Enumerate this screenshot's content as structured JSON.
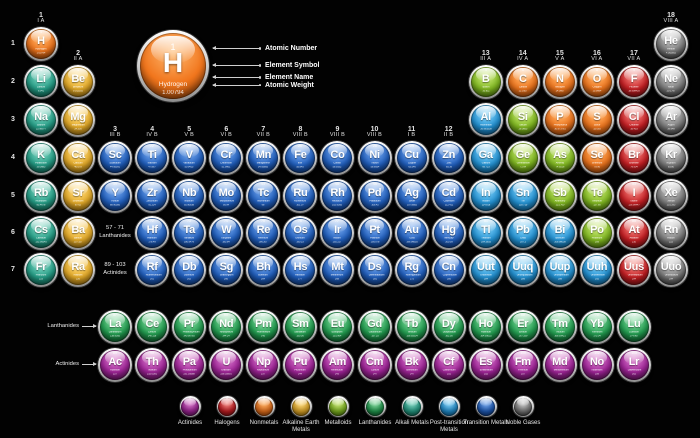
{
  "hero": {
    "number": "1",
    "symbol": "H",
    "name": "Hydrogen",
    "weight": "1.00794"
  },
  "callouts": {
    "atomic_number": "Atomic Number",
    "element_symbol": "Element Symbol",
    "element_name": "Element Name",
    "atomic_weight": "Atomic Weight"
  },
  "side_labels": {
    "lanthanides": "Lanthanides",
    "actinides": "Actinides"
  },
  "inner_labels": {
    "lan_range": "57 - 71",
    "lan_word": "Lanthanides",
    "act_range": "89 - 103",
    "act_word": "Actinides"
  },
  "periods": [
    "1",
    "2",
    "3",
    "4",
    "5",
    "6",
    "7"
  ],
  "groups": [
    {
      "col": 1,
      "num": "1",
      "roman": "I A",
      "lvl": "t"
    },
    {
      "col": 2,
      "num": "2",
      "roman": "II A",
      "lvl": "m"
    },
    {
      "col": 3,
      "num": "3",
      "roman": "III B",
      "lvl": "b"
    },
    {
      "col": 4,
      "num": "4",
      "roman": "IV B",
      "lvl": "b"
    },
    {
      "col": 5,
      "num": "5",
      "roman": "V B",
      "lvl": "b"
    },
    {
      "col": 6,
      "num": "6",
      "roman": "VI B",
      "lvl": "b"
    },
    {
      "col": 7,
      "num": "7",
      "roman": "VII B",
      "lvl": "b"
    },
    {
      "col": 8,
      "num": "8",
      "roman": "VIII B",
      "lvl": "b"
    },
    {
      "col": 9,
      "num": "9",
      "roman": "VIII B",
      "lvl": "b"
    },
    {
      "col": 10,
      "num": "10",
      "roman": "VIII B",
      "lvl": "b"
    },
    {
      "col": 11,
      "num": "11",
      "roman": "I B",
      "lvl": "b"
    },
    {
      "col": 12,
      "num": "12",
      "roman": "II B",
      "lvl": "b"
    },
    {
      "col": 13,
      "num": "13",
      "roman": "III A",
      "lvl": "m"
    },
    {
      "col": 14,
      "num": "14",
      "roman": "IV A",
      "lvl": "m"
    },
    {
      "col": 15,
      "num": "15",
      "roman": "V A",
      "lvl": "m"
    },
    {
      "col": 16,
      "num": "16",
      "roman": "VI A",
      "lvl": "m"
    },
    {
      "col": 17,
      "num": "17",
      "roman": "VII A",
      "lvl": "m"
    },
    {
      "col": 18,
      "num": "18",
      "roman": "VIII A",
      "lvl": "t"
    }
  ],
  "colors": {
    "actinide": {
      "light": "#e08ad2",
      "base": "#a3259b",
      "dark": "#4e0d49"
    },
    "halogen": {
      "light": "#f79a92",
      "base": "#cb1f24",
      "dark": "#5f0709"
    },
    "nonmetal": {
      "light": "#ffbb72",
      "base": "#f1761d",
      "dark": "#7c3403"
    },
    "alkaline": {
      "light": "#ffe18e",
      "base": "#eaaf2a",
      "dark": "#7b5605"
    },
    "metalloid": {
      "light": "#d3ec86",
      "base": "#84bd22",
      "dark": "#3a5c05"
    },
    "lanthanide": {
      "light": "#96e2ad",
      "base": "#23a152",
      "dark": "#063f1d"
    },
    "alkali": {
      "light": "#8fdcc9",
      "base": "#26a28a",
      "dark": "#064a3b"
    },
    "post": {
      "light": "#93d9f9",
      "base": "#2496d9",
      "dark": "#064a75"
    },
    "transition": {
      "light": "#86b4f2",
      "base": "#2161c2",
      "dark": "#06275f"
    },
    "noble": {
      "light": "#d4d4d4",
      "base": "#7e7e7e",
      "dark": "#1f1f1f"
    }
  },
  "legend": [
    {
      "label": "Actinides",
      "cat": "actinide"
    },
    {
      "label": "Halogens",
      "cat": "halogen"
    },
    {
      "label": "Nonmetals",
      "cat": "nonmetal"
    },
    {
      "label": "Alkaline Earth Metals",
      "cat": "alkaline"
    },
    {
      "label": "Metalloids",
      "cat": "metalloid"
    },
    {
      "label": "Lanthanides",
      "cat": "lanthanide"
    },
    {
      "label": "Alkali Metals",
      "cat": "alkali"
    },
    {
      "label": "Post-transition Metals",
      "cat": "post"
    },
    {
      "label": "Transition Metals",
      "cat": "transition"
    },
    {
      "label": "Noble Gases",
      "cat": "noble"
    }
  ],
  "elements": [
    [
      1,
      "H",
      "Hydrogen",
      "1.00794",
      "nonmetal",
      1,
      "1"
    ],
    [
      2,
      "He",
      "Helium",
      "4.002602",
      "noble",
      18,
      "1"
    ],
    [
      3,
      "Li",
      "Lithium",
      "6.941",
      "alkali",
      1,
      "2"
    ],
    [
      4,
      "Be",
      "Beryllium",
      "9.012182",
      "alkaline",
      2,
      "2"
    ],
    [
      5,
      "B",
      "Boron",
      "10.811",
      "metalloid",
      13,
      "2"
    ],
    [
      6,
      "C",
      "Carbon",
      "12.0107",
      "nonmetal",
      14,
      "2"
    ],
    [
      7,
      "N",
      "Nitrogen",
      "14.0067",
      "nonmetal",
      15,
      "2"
    ],
    [
      8,
      "O",
      "Oxygen",
      "15.9994",
      "nonmetal",
      16,
      "2"
    ],
    [
      9,
      "F",
      "Fluorine",
      "18.998403",
      "halogen",
      17,
      "2"
    ],
    [
      10,
      "Ne",
      "Neon",
      "20.1797",
      "noble",
      18,
      "2"
    ],
    [
      11,
      "Na",
      "Sodium",
      "22.98977",
      "alkali",
      1,
      "3"
    ],
    [
      12,
      "Mg",
      "Magnesium",
      "24.305",
      "alkaline",
      2,
      "3"
    ],
    [
      13,
      "Al",
      "Aluminium",
      "26.981538",
      "post",
      13,
      "3"
    ],
    [
      14,
      "Si",
      "Silicon",
      "28.0855",
      "metalloid",
      14,
      "3"
    ],
    [
      15,
      "P",
      "Phosphorus",
      "30.973761",
      "nonmetal",
      15,
      "3"
    ],
    [
      16,
      "S",
      "Sulfur",
      "32.065",
      "nonmetal",
      16,
      "3"
    ],
    [
      17,
      "Cl",
      "Chlorine",
      "35.453",
      "halogen",
      17,
      "3"
    ],
    [
      18,
      "Ar",
      "Argon",
      "39.948",
      "noble",
      18,
      "3"
    ],
    [
      19,
      "K",
      "Potassium",
      "39.0983",
      "alkali",
      1,
      "4"
    ],
    [
      20,
      "Ca",
      "Calcium",
      "40.078",
      "alkaline",
      2,
      "4"
    ],
    [
      21,
      "Sc",
      "Scandium",
      "44.95591",
      "transition",
      3,
      "4"
    ],
    [
      22,
      "Ti",
      "Titanium",
      "47.867",
      "transition",
      4,
      "4"
    ],
    [
      23,
      "V",
      "Vanadium",
      "50.9415",
      "transition",
      5,
      "4"
    ],
    [
      24,
      "Cr",
      "Chromium",
      "51.9961",
      "transition",
      6,
      "4"
    ],
    [
      25,
      "Mn",
      "Manganese",
      "54.93805",
      "transition",
      7,
      "4"
    ],
    [
      26,
      "Fe",
      "Iron",
      "55.845",
      "transition",
      8,
      "4"
    ],
    [
      27,
      "Co",
      "Cobalt",
      "58.9332",
      "transition",
      9,
      "4"
    ],
    [
      28,
      "Ni",
      "Nickel",
      "58.6934",
      "transition",
      10,
      "4"
    ],
    [
      29,
      "Cu",
      "Copper",
      "63.546",
      "transition",
      11,
      "4"
    ],
    [
      30,
      "Zn",
      "Zinc",
      "65.39",
      "transition",
      12,
      "4"
    ],
    [
      31,
      "Ga",
      "Gallium",
      "69.723",
      "post",
      13,
      "4"
    ],
    [
      32,
      "Ge",
      "Germanium",
      "72.64",
      "metalloid",
      14,
      "4"
    ],
    [
      33,
      "As",
      "Arsenic",
      "74.9216",
      "metalloid",
      15,
      "4"
    ],
    [
      34,
      "Se",
      "Selenium",
      "78.96",
      "nonmetal",
      16,
      "4"
    ],
    [
      35,
      "Br",
      "Bromine",
      "79.904",
      "halogen",
      17,
      "4"
    ],
    [
      36,
      "Kr",
      "Krypton",
      "83.80",
      "noble",
      18,
      "4"
    ],
    [
      37,
      "Rb",
      "Rubidium",
      "85.4678",
      "alkali",
      1,
      "5"
    ],
    [
      38,
      "Sr",
      "Strontium",
      "87.62",
      "alkaline",
      2,
      "5"
    ],
    [
      39,
      "Y",
      "Yttrium",
      "88.90585",
      "transition",
      3,
      "5"
    ],
    [
      40,
      "Zr",
      "Zirconium",
      "91.224",
      "transition",
      4,
      "5"
    ],
    [
      41,
      "Nb",
      "Niobium",
      "92.90638",
      "transition",
      5,
      "5"
    ],
    [
      42,
      "Mo",
      "Molybdenum",
      "95.94",
      "transition",
      6,
      "5"
    ],
    [
      43,
      "Tc",
      "Technetium",
      "98",
      "transition",
      7,
      "5"
    ],
    [
      44,
      "Ru",
      "Ruthenium",
      "101.07",
      "transition",
      8,
      "5"
    ],
    [
      45,
      "Rh",
      "Rhodium",
      "102.9055",
      "transition",
      9,
      "5"
    ],
    [
      46,
      "Pd",
      "Palladium",
      "106.42",
      "transition",
      10,
      "5"
    ],
    [
      47,
      "Ag",
      "Silver",
      "107.8682",
      "transition",
      11,
      "5"
    ],
    [
      48,
      "Cd",
      "Cadmium",
      "112.411",
      "transition",
      12,
      "5"
    ],
    [
      49,
      "In",
      "Indium",
      "114.818",
      "post",
      13,
      "5"
    ],
    [
      50,
      "Sn",
      "Tin",
      "118.710",
      "post",
      14,
      "5"
    ],
    [
      51,
      "Sb",
      "Antimony",
      "121.760",
      "metalloid",
      15,
      "5"
    ],
    [
      52,
      "Te",
      "Tellurium",
      "127.60",
      "metalloid",
      16,
      "5"
    ],
    [
      53,
      "I",
      "Iodine",
      "126.90447",
      "halogen",
      17,
      "5"
    ],
    [
      54,
      "Xe",
      "Xenon",
      "131.293",
      "noble",
      18,
      "5"
    ],
    [
      55,
      "Cs",
      "Caesium",
      "132.90545",
      "alkali",
      1,
      "6"
    ],
    [
      56,
      "Ba",
      "Barium",
      "137.327",
      "alkaline",
      2,
      "6"
    ],
    [
      72,
      "Hf",
      "Hafnium",
      "178.49",
      "transition",
      4,
      "6"
    ],
    [
      73,
      "Ta",
      "Tantalum",
      "180.9479",
      "transition",
      5,
      "6"
    ],
    [
      74,
      "W",
      "Tungsten",
      "183.84",
      "transition",
      6,
      "6"
    ],
    [
      75,
      "Re",
      "Rhenium",
      "186.207",
      "transition",
      7,
      "6"
    ],
    [
      76,
      "Os",
      "Osmium",
      "190.23",
      "transition",
      8,
      "6"
    ],
    [
      77,
      "Ir",
      "Iridium",
      "192.217",
      "transition",
      9,
      "6"
    ],
    [
      78,
      "Pt",
      "Platinum",
      "195.078",
      "transition",
      10,
      "6"
    ],
    [
      79,
      "Au",
      "Gold",
      "196.96655",
      "transition",
      11,
      "6"
    ],
    [
      80,
      "Hg",
      "Mercury",
      "200.59",
      "transition",
      12,
      "6"
    ],
    [
      81,
      "Tl",
      "Thallium",
      "204.3833",
      "post",
      13,
      "6"
    ],
    [
      82,
      "Pb",
      "Lead",
      "207.2",
      "post",
      14,
      "6"
    ],
    [
      83,
      "Bi",
      "Bismuth",
      "208.98038",
      "post",
      15,
      "6"
    ],
    [
      84,
      "Po",
      "Polonium",
      "209",
      "metalloid",
      16,
      "6"
    ],
    [
      85,
      "At",
      "Astatine",
      "210",
      "halogen",
      17,
      "6"
    ],
    [
      86,
      "Rn",
      "Radon",
      "222",
      "noble",
      18,
      "6"
    ],
    [
      87,
      "Fr",
      "Francium",
      "223",
      "alkali",
      1,
      "7"
    ],
    [
      88,
      "Ra",
      "Radium",
      "226",
      "alkaline",
      2,
      "7"
    ],
    [
      104,
      "Rf",
      "Rutherfordium",
      "261",
      "transition",
      4,
      "7"
    ],
    [
      105,
      "Db",
      "Dubnium",
      "262",
      "transition",
      5,
      "7"
    ],
    [
      106,
      "Sg",
      "Seaborgium",
      "266",
      "transition",
      6,
      "7"
    ],
    [
      107,
      "Bh",
      "Bohrium",
      "264",
      "transition",
      7,
      "7"
    ],
    [
      108,
      "Hs",
      "Hassium",
      "277",
      "transition",
      8,
      "7"
    ],
    [
      109,
      "Mt",
      "Meitnerium",
      "268",
      "transition",
      9,
      "7"
    ],
    [
      110,
      "Ds",
      "Darmstadtium",
      "281",
      "transition",
      10,
      "7"
    ],
    [
      111,
      "Rg",
      "Roentgenium",
      "272",
      "transition",
      11,
      "7"
    ],
    [
      112,
      "Cn",
      "Copernicium",
      "285",
      "transition",
      12,
      "7"
    ],
    [
      113,
      "Uut",
      "Ununtrium",
      "284",
      "post",
      13,
      "7"
    ],
    [
      114,
      "Uuq",
      "Ununquadium",
      "289",
      "post",
      14,
      "7"
    ],
    [
      115,
      "Uup",
      "Ununpentium",
      "288",
      "post",
      15,
      "7"
    ],
    [
      116,
      "Uuh",
      "Ununhexium",
      "292",
      "post",
      16,
      "7"
    ],
    [
      117,
      "Uus",
      "Ununseptium",
      "294",
      "halogen",
      17,
      "7"
    ],
    [
      118,
      "Uuo",
      "Ununoctium",
      "294",
      "noble",
      18,
      "7"
    ],
    [
      57,
      "La",
      "Lanthanum",
      "138.9055",
      "lanthanide",
      3,
      "L"
    ],
    [
      58,
      "Ce",
      "Cerium",
      "140.116",
      "lanthanide",
      4,
      "L"
    ],
    [
      59,
      "Pr",
      "Praseodymium",
      "140.90765",
      "lanthanide",
      5,
      "L"
    ],
    [
      60,
      "Nd",
      "Neodymium",
      "144.24",
      "lanthanide",
      6,
      "L"
    ],
    [
      61,
      "Pm",
      "Promethium",
      "145",
      "lanthanide",
      7,
      "L"
    ],
    [
      62,
      "Sm",
      "Samarium",
      "150.36",
      "lanthanide",
      8,
      "L"
    ],
    [
      63,
      "Eu",
      "Europium",
      "151.964",
      "lanthanide",
      9,
      "L"
    ],
    [
      64,
      "Gd",
      "Gadolinium",
      "157.25",
      "lanthanide",
      10,
      "L"
    ],
    [
      65,
      "Tb",
      "Terbium",
      "158.92534",
      "lanthanide",
      11,
      "L"
    ],
    [
      66,
      "Dy",
      "Dysprosium",
      "162.50",
      "lanthanide",
      12,
      "L"
    ],
    [
      67,
      "Ho",
      "Holmium",
      "164.93032",
      "lanthanide",
      13,
      "L"
    ],
    [
      68,
      "Er",
      "Erbium",
      "167.259",
      "lanthanide",
      14,
      "L"
    ],
    [
      69,
      "Tm",
      "Thulium",
      "168.93421",
      "lanthanide",
      15,
      "L"
    ],
    [
      70,
      "Yb",
      "Ytterbium",
      "173.04",
      "lanthanide",
      16,
      "L"
    ],
    [
      71,
      "Lu",
      "Lutetium",
      "174.967",
      "lanthanide",
      17,
      "L"
    ],
    [
      89,
      "Ac",
      "Actinium",
      "227",
      "actinide",
      3,
      "A"
    ],
    [
      90,
      "Th",
      "Thorium",
      "232.0381",
      "actinide",
      4,
      "A"
    ],
    [
      91,
      "Pa",
      "Protactinium",
      "231.03588",
      "actinide",
      5,
      "A"
    ],
    [
      92,
      "U",
      "Uranium",
      "238.02891",
      "actinide",
      6,
      "A"
    ],
    [
      93,
      "Np",
      "Neptunium",
      "237",
      "actinide",
      7,
      "A"
    ],
    [
      94,
      "Pu",
      "Plutonium",
      "244",
      "actinide",
      8,
      "A"
    ],
    [
      95,
      "Am",
      "Americium",
      "243",
      "actinide",
      9,
      "A"
    ],
    [
      96,
      "Cm",
      "Curium",
      "247",
      "actinide",
      10,
      "A"
    ],
    [
      97,
      "Bk",
      "Berkelium",
      "247",
      "actinide",
      11,
      "A"
    ],
    [
      98,
      "Cf",
      "Californium",
      "251",
      "actinide",
      12,
      "A"
    ],
    [
      99,
      "Es",
      "Einsteinium",
      "252",
      "actinide",
      13,
      "A"
    ],
    [
      100,
      "Fm",
      "Fermium",
      "257",
      "actinide",
      14,
      "A"
    ],
    [
      101,
      "Md",
      "Mendelevium",
      "258",
      "actinide",
      15,
      "A"
    ],
    [
      102,
      "No",
      "Nobelium",
      "259",
      "actinide",
      16,
      "A"
    ],
    [
      103,
      "Lr",
      "Lawrencium",
      "262",
      "actinide",
      17,
      "A"
    ]
  ]
}
